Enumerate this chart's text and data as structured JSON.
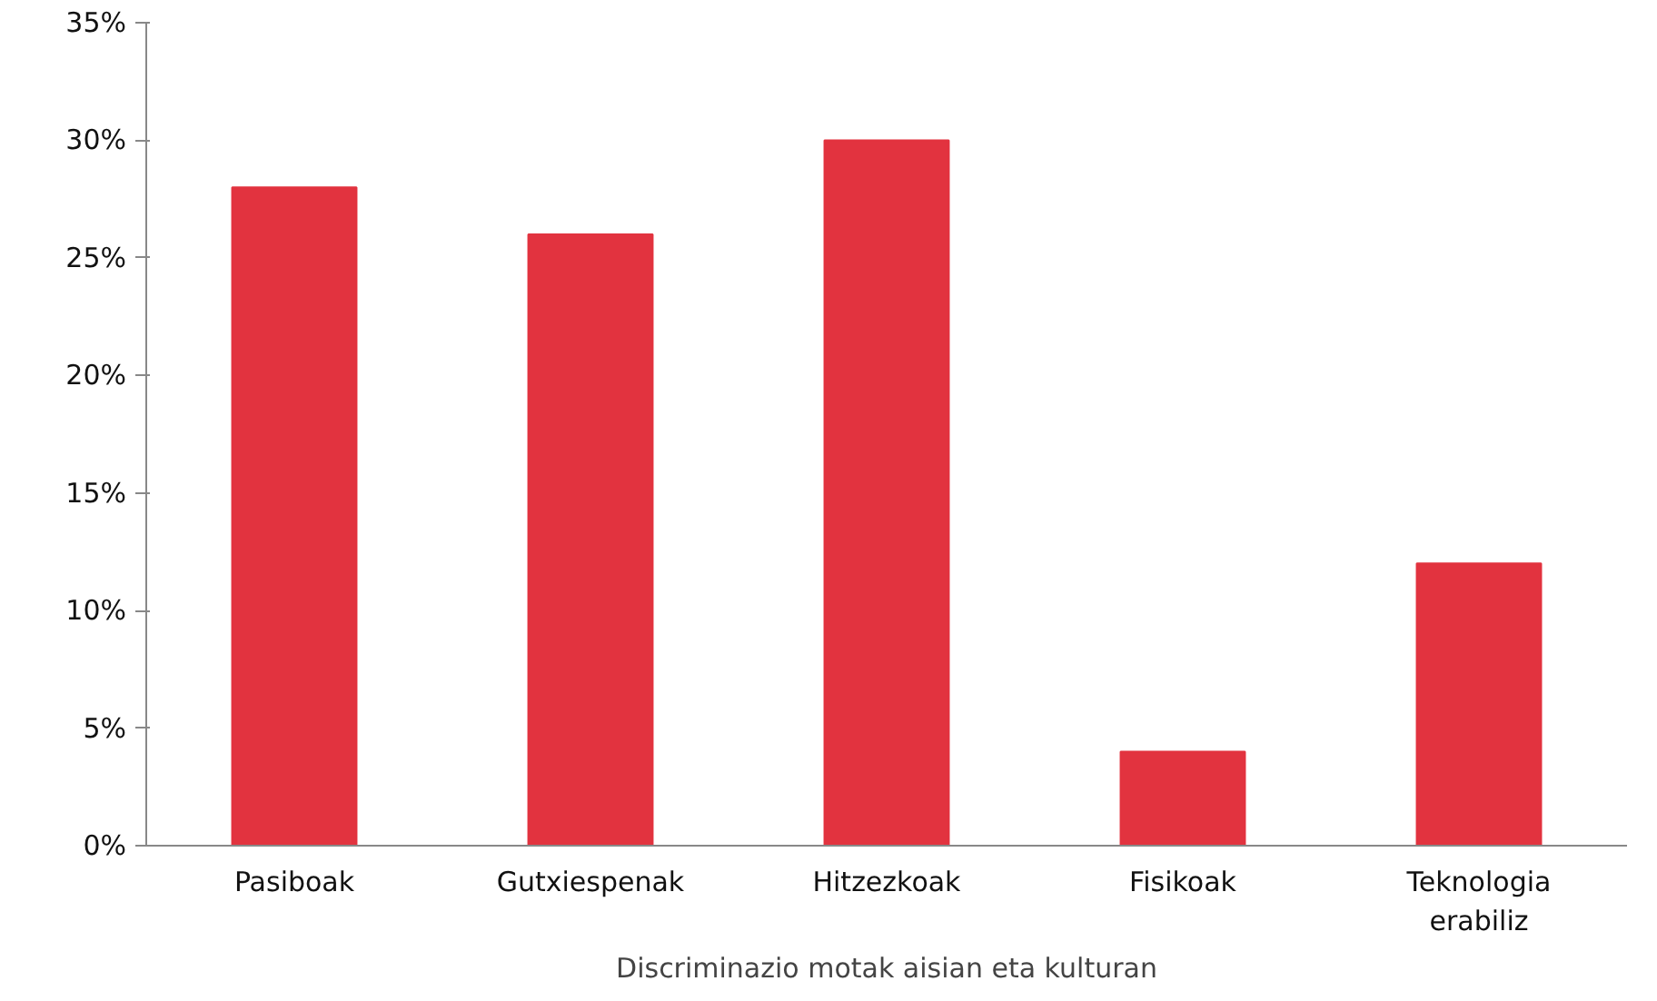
{
  "chart_data": {
    "type": "bar",
    "xlabel": "Discriminazio motak aisian eta kulturan",
    "categories": [
      "Pasiboak",
      "Gutxiespenak",
      "Hitzezkoak",
      "Fisikoak",
      "Teknologia erabiliz"
    ],
    "values": [
      28,
      26,
      30,
      4,
      12
    ],
    "color": "#e2333f",
    "ylim": [
      0,
      35
    ],
    "yticks": [
      {
        "value": 0,
        "label": "0%"
      },
      {
        "value": 5,
        "label": "5%"
      },
      {
        "value": 10,
        "label": "10%"
      },
      {
        "value": 15,
        "label": "15%"
      },
      {
        "value": 20,
        "label": "20%"
      },
      {
        "value": 25,
        "label": "25%"
      },
      {
        "value": 30,
        "label": "30%"
      },
      {
        "value": 35,
        "label": "35%"
      }
    ],
    "grid": false
  }
}
